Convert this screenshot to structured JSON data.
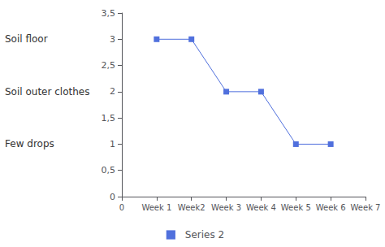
{
  "chart_data": {
    "type": "line",
    "x": [
      1,
      2,
      3,
      4,
      5,
      6
    ],
    "series": [
      {
        "name": "Series 2",
        "values": [
          3,
          3,
          2,
          2,
          1,
          1
        ],
        "marker": "square"
      }
    ],
    "xlim": [
      0,
      7
    ],
    "xticks": [
      0,
      {
        "value": 1,
        "label": "Week 1"
      },
      {
        "value": 2,
        "label": "Week2"
      },
      {
        "value": 3,
        "label": "Week 3"
      },
      {
        "value": 4,
        "label": "Week 4"
      },
      {
        "value": 5,
        "label": "Week 5"
      },
      {
        "value": 6,
        "label": "Week 6"
      },
      {
        "value": 7,
        "label": "Week 7"
      }
    ],
    "ylim": [
      0,
      3.5
    ],
    "yticks": [
      0,
      {
        "value": 0.5,
        "label": "0,5"
      },
      1,
      {
        "value": 1.5,
        "label": "1,5"
      },
      2,
      {
        "value": 2.5,
        "label": "2,5"
      },
      3,
      {
        "value": 3.5,
        "label": "3,5"
      }
    ],
    "annotations": [
      {
        "text": "Soil floor",
        "y": 3.0
      },
      {
        "text": "Soil outer clothes",
        "y": 2.0
      },
      {
        "text": "Few drops",
        "y": 1.0
      }
    ],
    "grid": false,
    "legend": "bottom"
  }
}
